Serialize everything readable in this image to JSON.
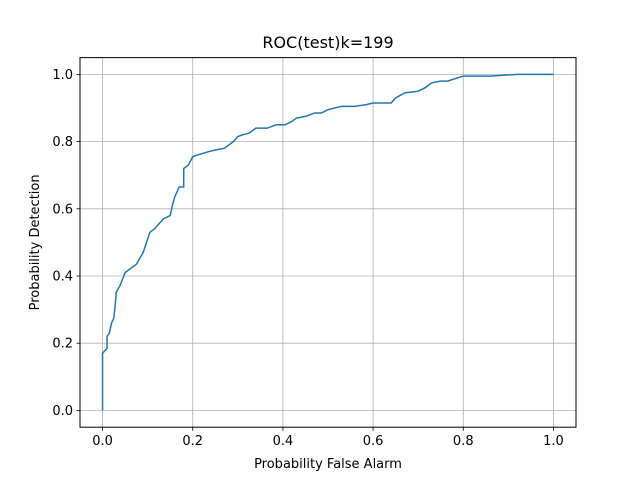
{
  "chart_data": {
    "type": "line",
    "title": "ROC(test)k=199",
    "xlabel": "Probability False Alarm",
    "ylabel": "Probability Detection",
    "xlim": [
      -0.05,
      1.05
    ],
    "ylim": [
      -0.05,
      1.05
    ],
    "xticks": [
      0.0,
      0.2,
      0.4,
      0.6,
      0.8,
      1.0
    ],
    "yticks": [
      0.0,
      0.2,
      0.4,
      0.6,
      0.8,
      1.0
    ],
    "xtick_labels": [
      "0.0",
      "0.2",
      "0.4",
      "0.6",
      "0.8",
      "1.0"
    ],
    "ytick_labels": [
      "0.0",
      "0.2",
      "0.4",
      "0.6",
      "0.8",
      "1.0"
    ],
    "grid": true,
    "series": [
      {
        "color": "#1f77b4",
        "x": [
          0.0,
          0.0,
          0.0,
          0.01,
          0.01,
          0.015,
          0.02,
          0.025,
          0.03,
          0.03,
          0.04,
          0.05,
          0.06,
          0.075,
          0.09,
          0.105,
          0.115,
          0.125,
          0.135,
          0.15,
          0.155,
          0.16,
          0.17,
          0.18,
          0.18,
          0.19,
          0.2,
          0.21,
          0.235,
          0.25,
          0.27,
          0.29,
          0.3,
          0.31,
          0.325,
          0.34,
          0.35,
          0.365,
          0.385,
          0.405,
          0.42,
          0.43,
          0.45,
          0.47,
          0.485,
          0.5,
          0.53,
          0.56,
          0.585,
          0.6,
          0.64,
          0.65,
          0.67,
          0.7,
          0.715,
          0.73,
          0.75,
          0.765,
          0.8,
          0.86,
          0.92,
          1.0
        ],
        "y": [
          0.0,
          0.15,
          0.17,
          0.185,
          0.22,
          0.23,
          0.26,
          0.275,
          0.34,
          0.35,
          0.375,
          0.41,
          0.42,
          0.435,
          0.47,
          0.53,
          0.54,
          0.555,
          0.57,
          0.58,
          0.61,
          0.635,
          0.665,
          0.665,
          0.72,
          0.73,
          0.755,
          0.76,
          0.77,
          0.775,
          0.78,
          0.8,
          0.815,
          0.82,
          0.825,
          0.84,
          0.84,
          0.84,
          0.85,
          0.85,
          0.86,
          0.87,
          0.875,
          0.885,
          0.885,
          0.895,
          0.905,
          0.905,
          0.91,
          0.915,
          0.915,
          0.93,
          0.945,
          0.95,
          0.96,
          0.975,
          0.98,
          0.98,
          0.995,
          0.995,
          1.0,
          1.0
        ]
      }
    ]
  }
}
